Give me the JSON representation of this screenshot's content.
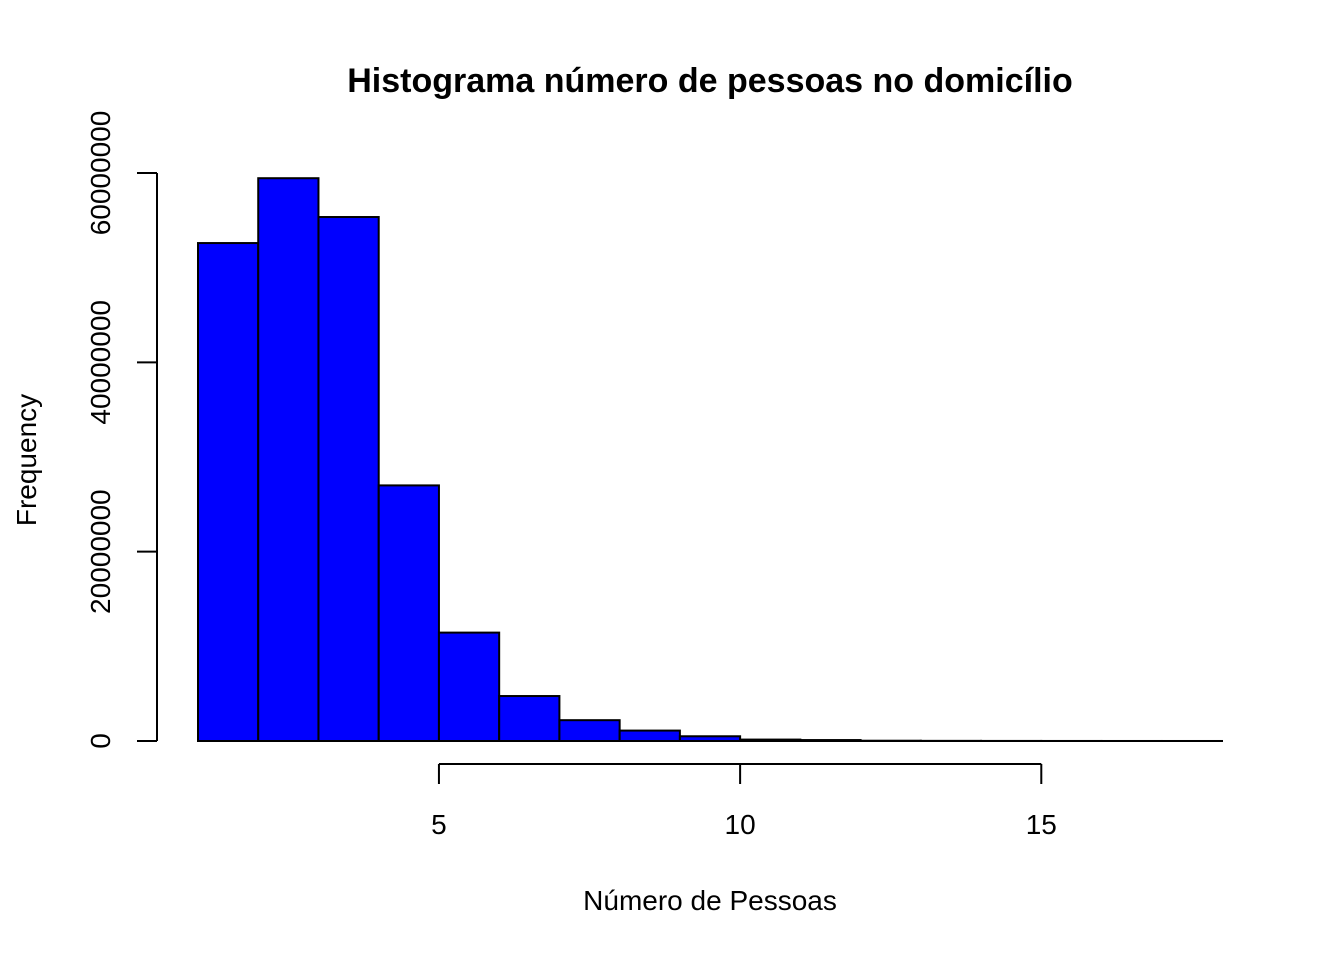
{
  "chart_data": {
    "type": "bar",
    "title": "Histograma número de pessoas no domicílio",
    "xlabel": "Número de Pessoas",
    "ylabel": "Frequency",
    "bar_color": "#0000ff",
    "border_color": "#000000",
    "bins": [
      {
        "start": 1,
        "end": 2,
        "value": 52600000
      },
      {
        "start": 2,
        "end": 3,
        "value": 59450000
      },
      {
        "start": 3,
        "end": 4,
        "value": 55350000
      },
      {
        "start": 4,
        "end": 5,
        "value": 27000000
      },
      {
        "start": 5,
        "end": 6,
        "value": 11450000
      },
      {
        "start": 6,
        "end": 7,
        "value": 4750000
      },
      {
        "start": 7,
        "end": 8,
        "value": 2200000
      },
      {
        "start": 8,
        "end": 9,
        "value": 1100000
      },
      {
        "start": 9,
        "end": 10,
        "value": 500000
      },
      {
        "start": 10,
        "end": 11,
        "value": 150000
      },
      {
        "start": 11,
        "end": 12,
        "value": 100000
      },
      {
        "start": 12,
        "end": 13,
        "value": 30000
      },
      {
        "start": 13,
        "end": 14,
        "value": 15000
      },
      {
        "start": 14,
        "end": 15,
        "value": 8000
      },
      {
        "start": 15,
        "end": 16,
        "value": 4000
      },
      {
        "start": 16,
        "end": 17,
        "value": 2000
      },
      {
        "start": 17,
        "end": 18,
        "value": 1000
      }
    ],
    "xlim": [
      1,
      18
    ],
    "ylim": [
      0,
      60000000
    ],
    "x_ticks": [
      5,
      10,
      15
    ],
    "y_ticks": [
      0,
      20000000,
      40000000,
      60000000
    ],
    "x_tick_labels": [
      "5",
      "10",
      "15"
    ],
    "y_tick_labels": [
      "0",
      "20000000",
      "40000000",
      "60000000"
    ],
    "grid": false
  }
}
